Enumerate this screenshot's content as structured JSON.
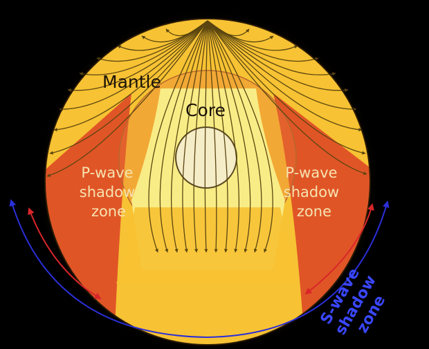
{
  "labels": {
    "mantle": "Mantle",
    "core": "Core",
    "p_shadow_left": [
      "P-wave",
      "shadow",
      "zone"
    ],
    "p_shadow_right": [
      "P-wave",
      "shadow",
      "zone"
    ],
    "s_shadow": [
      "S-wave",
      "shadow",
      "zone"
    ]
  },
  "colors": {
    "background": "#000000",
    "mantle": "#f7c233",
    "p_shadow": "#e05526",
    "core_rays": "#f8ec86",
    "inner_core": "#f5ecc8",
    "ray_lines": "#5a4510",
    "p_arrow": "#d8262a",
    "s_arrow": "#2b2fd8"
  },
  "icons": [
    "ray-arrow-icon",
    "p-wave-arrow-icon",
    "s-wave-arrow-icon"
  ]
}
